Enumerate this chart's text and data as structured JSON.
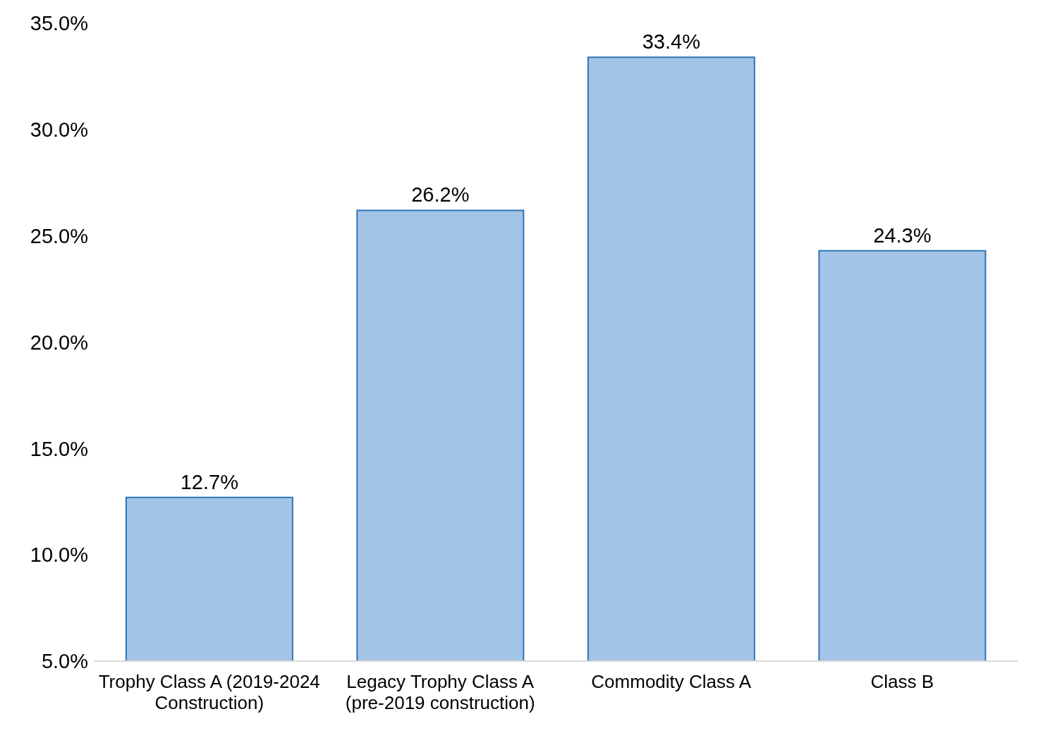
{
  "chart_data": {
    "type": "bar",
    "categories": [
      "Trophy Class A (2019-2024 Construction)",
      "Legacy Trophy Class A (pre-2019 construction)",
      "Commodity Class A",
      "Class B"
    ],
    "values": [
      12.7,
      26.2,
      33.4,
      24.3
    ],
    "value_labels": [
      "12.7%",
      "26.2%",
      "33.4%",
      "24.3%"
    ],
    "color": "#a3c4e6",
    "ylim": [
      5,
      35
    ],
    "yticks": [
      {
        "value": 5,
        "label": "5.0%"
      },
      {
        "value": 10,
        "label": "10.0%"
      },
      {
        "value": 15,
        "label": "15.0%"
      },
      {
        "value": 20,
        "label": "20.0%"
      },
      {
        "value": 25,
        "label": "25.0%"
      },
      {
        "value": 30,
        "label": "30.0%"
      },
      {
        "value": 35,
        "label": "35.0%"
      }
    ],
    "grid": false,
    "legend": false
  }
}
